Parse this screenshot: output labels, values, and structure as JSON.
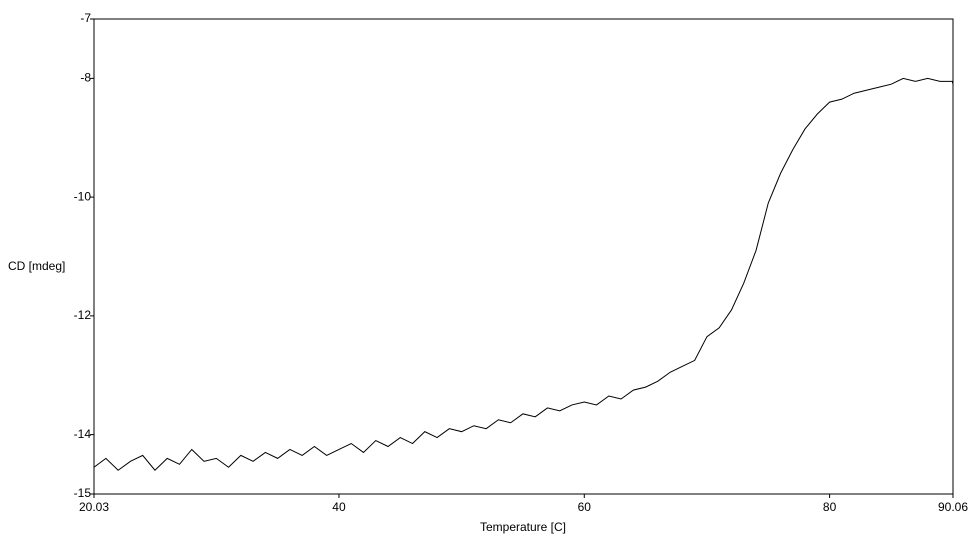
{
  "chart_data": {
    "type": "line",
    "xlabel": "Temperature [C]",
    "ylabel": "CD [mdeg]",
    "x": [
      20.03,
      21,
      22,
      23,
      24,
      25,
      26,
      27,
      28,
      29,
      30,
      31,
      32,
      33,
      34,
      35,
      36,
      37,
      38,
      39,
      40,
      41,
      42,
      43,
      44,
      45,
      46,
      47,
      48,
      49,
      50,
      51,
      52,
      53,
      54,
      55,
      56,
      57,
      58,
      59,
      60,
      61,
      62,
      63,
      64,
      65,
      66,
      67,
      68,
      69,
      70,
      71,
      72,
      73,
      74,
      75,
      76,
      77,
      78,
      79,
      80,
      81,
      82,
      83,
      84,
      85,
      86,
      87,
      88,
      89,
      90,
      90.06
    ],
    "series": [
      {
        "color": "#000000",
        "values": [
          -14.55,
          -14.4,
          -14.6,
          -14.45,
          -14.35,
          -14.6,
          -14.4,
          -14.5,
          -14.25,
          -14.45,
          -14.4,
          -14.55,
          -14.35,
          -14.45,
          -14.3,
          -14.4,
          -14.25,
          -14.35,
          -14.2,
          -14.35,
          -14.25,
          -14.15,
          -14.3,
          -14.1,
          -14.2,
          -14.05,
          -14.15,
          -13.95,
          -14.05,
          -13.9,
          -13.95,
          -13.85,
          -13.9,
          -13.75,
          -13.8,
          -13.65,
          -13.7,
          -13.55,
          -13.6,
          -13.5,
          -13.45,
          -13.5,
          -13.35,
          -13.4,
          -13.25,
          -13.2,
          -13.1,
          -12.95,
          -12.85,
          -12.75,
          -12.35,
          -12.2,
          -11.9,
          -11.45,
          -10.9,
          -10.1,
          -9.6,
          -9.2,
          -8.85,
          -8.6,
          -8.4,
          -8.35,
          -8.25,
          -8.2,
          -8.15,
          -8.1,
          -8.0,
          -8.05,
          -8.0,
          -8.05,
          -8.05,
          -8.1
        ]
      }
    ],
    "xlim": [
      20.03,
      90.06
    ],
    "xticks": [
      20.03,
      40,
      60,
      80,
      90.06
    ],
    "ylim": [
      -15,
      -7
    ],
    "yticks": [
      -15,
      -14,
      -12,
      -10,
      -8,
      -7
    ]
  }
}
